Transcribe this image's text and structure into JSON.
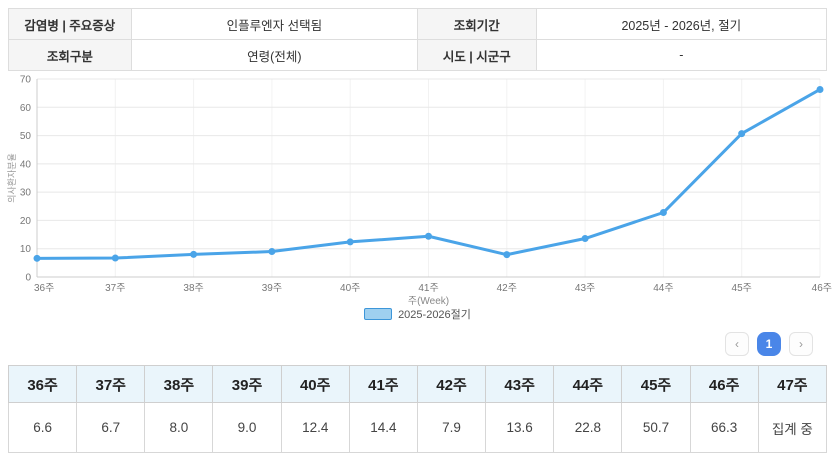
{
  "summary": {
    "rows": [
      [
        {
          "label": "감염병 | 주요증상",
          "value": "인플루엔자 선택됨"
        },
        {
          "label": "조회기간",
          "value": "2025년 - 2026년, 절기"
        }
      ],
      [
        {
          "label": "조회구분",
          "value": "연령(전체)"
        },
        {
          "label": "시도 | 시군구",
          "value": "-"
        }
      ]
    ]
  },
  "chart_data": {
    "type": "line",
    "categories": [
      "36주",
      "37주",
      "38주",
      "39주",
      "40주",
      "41주",
      "42주",
      "43주",
      "44주",
      "45주",
      "46주"
    ],
    "series": [
      {
        "name": "2025-2026절기",
        "values": [
          6.6,
          6.7,
          8.0,
          9.0,
          12.4,
          14.4,
          7.9,
          13.6,
          22.8,
          50.7,
          66.3
        ]
      }
    ],
    "title": "",
    "xlabel": "주(Week)",
    "ylabel": "의사환자분율",
    "ylim": [
      0,
      70
    ],
    "ytick_step": 10,
    "grid": true,
    "legend_position": "bottom",
    "line_color": "#4aa4e8",
    "marker_color": "#4aa4e8",
    "grid_color": "#e8e8e8",
    "axis_color": "#cccccc",
    "tick_text_color": "#777777"
  },
  "pagination": {
    "prev": "‹",
    "current": "1",
    "next": "›"
  },
  "table": {
    "headers": [
      "36주",
      "37주",
      "38주",
      "39주",
      "40주",
      "41주",
      "42주",
      "43주",
      "44주",
      "45주",
      "46주",
      "47주"
    ],
    "values": [
      "6.6",
      "6.7",
      "8.0",
      "9.0",
      "12.4",
      "14.4",
      "7.9",
      "13.6",
      "22.8",
      "50.7",
      "66.3",
      "집계 중"
    ]
  },
  "colors": {
    "accent_blue": "#4aa4e8",
    "active_page_blue": "#4a86e8",
    "table_header_bg": "#eaf5fb",
    "summary_label_bg": "#f5f5f5"
  }
}
